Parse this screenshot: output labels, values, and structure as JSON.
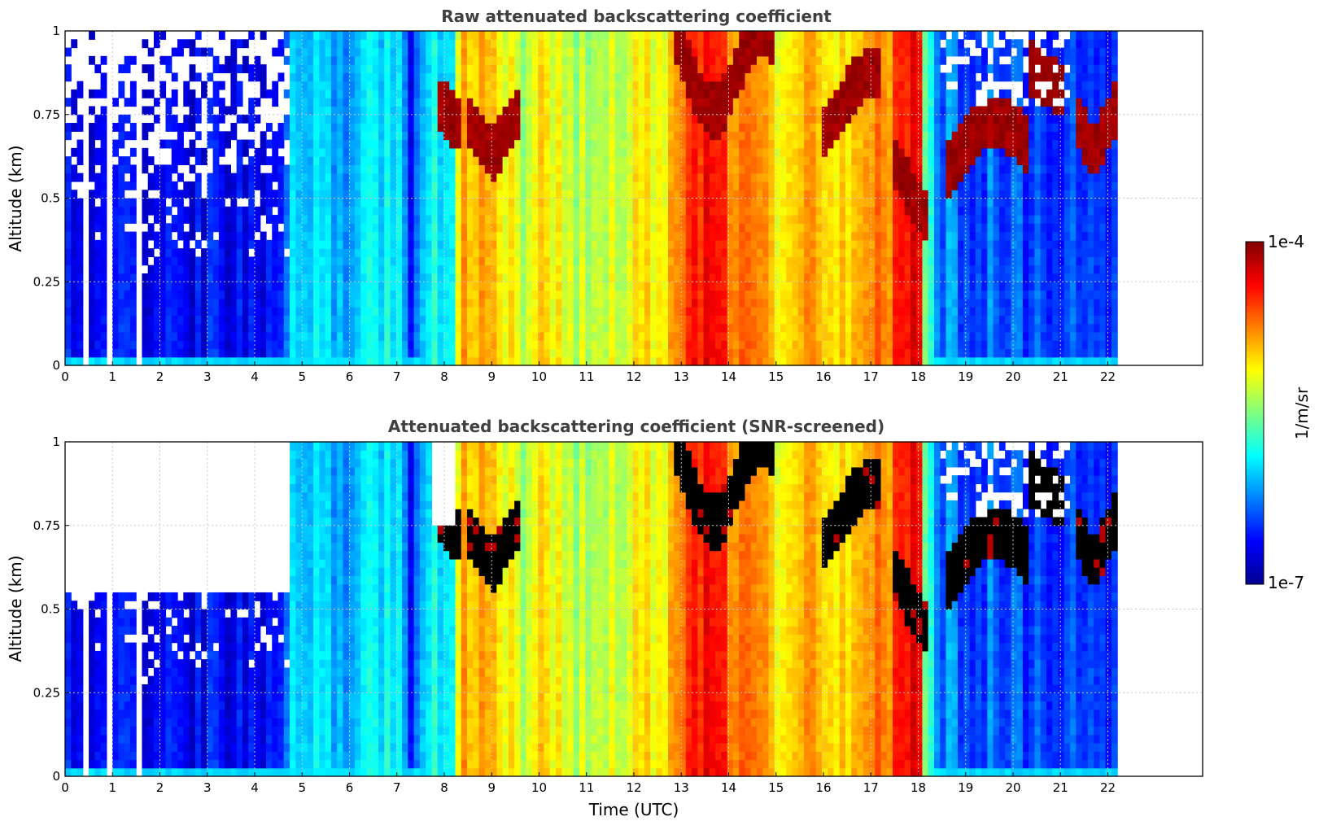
{
  "colors": {
    "jet": [
      "#00008f",
      "#0000ff",
      "#0080ff",
      "#00ffff",
      "#80ff80",
      "#ffff00",
      "#ff8000",
      "#ff0000",
      "#800000"
    ],
    "cloud_screened": "#000000",
    "grid": "#c8c8c8",
    "title": "#404040"
  },
  "chart_data": [
    {
      "type": "heatmap",
      "title": "Raw attenuated backscattering coefficient",
      "xlabel": "",
      "ylabel": "Altitude (km)",
      "xlim": [
        0,
        24
      ],
      "ylim": [
        0,
        1
      ],
      "x_ticks": [
        "0",
        "1",
        "2",
        "3",
        "4",
        "5",
        "6",
        "7",
        "8",
        "9",
        "10",
        "11",
        "12",
        "13",
        "14",
        "15",
        "16",
        "17",
        "18",
        "19",
        "20",
        "21",
        "22"
      ],
      "y_ticks": [
        "0",
        "0.25",
        "0.5",
        "0.75",
        "1"
      ],
      "grid": true,
      "data_extent_hours": [
        0,
        22.2
      ],
      "color_scale": "log",
      "zlim": [
        "1e-7",
        "1e-4"
      ],
      "screened": false
    },
    {
      "type": "heatmap",
      "title": "Attenuated backscattering coefficient (SNR-screened)",
      "xlabel": "Time (UTC)",
      "ylabel": "Altitude (km)",
      "xlim": [
        0,
        24
      ],
      "ylim": [
        0,
        1
      ],
      "x_ticks": [
        "0",
        "1",
        "2",
        "3",
        "4",
        "5",
        "6",
        "7",
        "8",
        "9",
        "10",
        "11",
        "12",
        "13",
        "14",
        "15",
        "16",
        "17",
        "18",
        "19",
        "20",
        "21",
        "22"
      ],
      "y_ticks": [
        "0",
        "0.25",
        "0.5",
        "0.75",
        "1"
      ],
      "grid": true,
      "data_extent_hours": [
        0,
        22.2
      ],
      "color_scale": "log",
      "zlim": [
        "1e-7",
        "1e-4"
      ],
      "screened": true
    }
  ],
  "colorbar": {
    "max_label": "1e-4",
    "min_label": "1e-7",
    "unit_label": "1/m/sr"
  }
}
